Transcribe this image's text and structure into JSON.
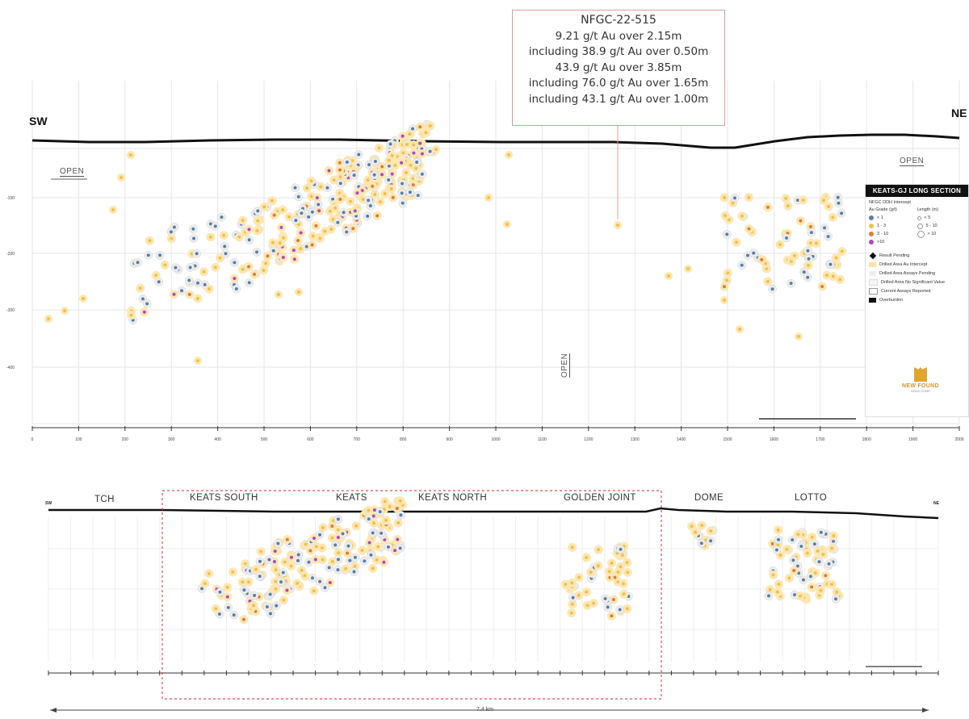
{
  "callout": {
    "hole_id": "NFGC-22-515",
    "lines": [
      "9.21 g/t Au over 2.15m",
      "including 38.9 g/t Au over 0.50m",
      "43.9 g/t Au over 3.85m",
      "including 76.0 g/t Au over 1.65m",
      "including 43.1 g/t Au over 1.00m"
    ]
  },
  "upper_section": {
    "left_end": "SW",
    "right_end": "NE",
    "open_labels": [
      "OPEN",
      "OPEN",
      "OPEN"
    ],
    "depth_ticks": [
      "-100",
      "-200",
      "-300",
      "-400"
    ],
    "distance_ticks": [
      "0",
      "100",
      "200",
      "300",
      "400",
      "500",
      "600",
      "700",
      "800",
      "900",
      "1000",
      "1100",
      "1200",
      "1300",
      "1400",
      "1500",
      "1600",
      "1700",
      "1800",
      "1900",
      "2000"
    ]
  },
  "lower_section": {
    "left_end": "SW",
    "right_end": "NE",
    "zones": [
      "TCH",
      "KEATS SOUTH",
      "KEATS",
      "KEATS NORTH",
      "GOLDEN JOINT",
      "DOME",
      "LOTTO"
    ],
    "length_label": "7.4 km"
  },
  "legend": {
    "title": "KEATS-GJ LONG SECTION",
    "subtitle": "NFGC DDH Intercept",
    "grade_header": "Au Grade (g/t)",
    "length_header": "Length (m)",
    "grades": [
      {
        "label": "< 1",
        "color": "#5b7fa6"
      },
      {
        "label": "1 - 3",
        "color": "#f0c24a"
      },
      {
        "label": "3 - 10",
        "color": "#e07a3a"
      },
      {
        "label": ">10",
        "color": "#b347c6"
      }
    ],
    "lengths": [
      "< 5",
      "5 - 10",
      "> 10"
    ],
    "keys": [
      {
        "label": "Result Pending",
        "color": "#111111"
      },
      {
        "label": "Drilled Area Au Intercept",
        "color": "#fbe3a6"
      },
      {
        "label": "Drilled Area Assays Pending",
        "color": "#eeeeee"
      },
      {
        "label": "Drilled Area No Significant Value",
        "color": "#f6f6f6"
      },
      {
        "label": "Current Assays Reported",
        "color": "#ffffff"
      },
      {
        "label": "Overburden",
        "color": "#111111"
      }
    ],
    "logo_text": "NEW FOUND",
    "logo_sub": "GOLD CORP"
  },
  "colors": {
    "surface": "#111111",
    "grid": "#e6e6e6",
    "halo": "#fce7b4",
    "callout_border": "#d9a09a",
    "zone_box": "#d9534f"
  }
}
